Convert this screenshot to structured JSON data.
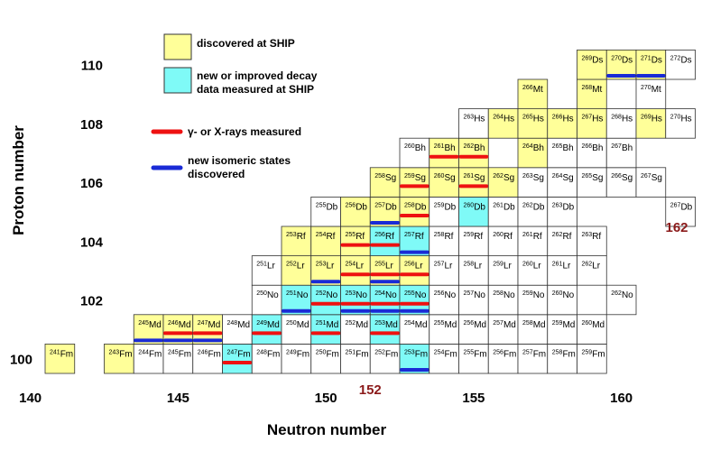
{
  "axes": {
    "x_label": "Neutron number",
    "y_label": "Proton number",
    "x_ticks": [
      {
        "n": 140,
        "label": "140"
      },
      {
        "n": 145,
        "label": "145"
      },
      {
        "n": 150,
        "label": "150"
      },
      {
        "n": 155,
        "label": "155"
      },
      {
        "n": 160,
        "label": "160"
      }
    ],
    "y_ticks": [
      {
        "z": 100,
        "label": "100"
      },
      {
        "z": 102,
        "label": "102"
      },
      {
        "z": 104,
        "label": "104"
      },
      {
        "z": 106,
        "label": "106"
      },
      {
        "z": 108,
        "label": "108"
      },
      {
        "z": 110,
        "label": "110"
      }
    ],
    "magic": [
      {
        "axis": "x",
        "n": 152,
        "label": "152"
      },
      {
        "axis": "y",
        "n": 162,
        "label": "162"
      }
    ]
  },
  "legend": [
    {
      "kind": "box",
      "color": "#ffff99",
      "label": "discovered at SHIP"
    },
    {
      "kind": "box",
      "color": "#7ffaf7",
      "label": "new or improved decay\ndata measured at SHIP"
    },
    {
      "kind": "line",
      "color": "#ee1111",
      "label": "γ- or X-rays measured"
    },
    {
      "kind": "line",
      "color": "#1a2bd6",
      "label": "new isomeric states\ndiscovered"
    }
  ],
  "colors": {
    "discovered": "#ffff99",
    "decay": "#7ffaf7",
    "gamma": "#ee1111",
    "isomer": "#1a2bd6",
    "magic": "#8b1a1a"
  },
  "elements": {
    "100": "Fm",
    "101": "Md",
    "102": "No",
    "103": "Lr",
    "104": "Rf",
    "105": "Db",
    "106": "Sg",
    "107": "Bh",
    "108": "Hs",
    "109": "Mt",
    "110": "Ds"
  },
  "nuclides": [
    {
      "z": 100,
      "n": 141,
      "status": "yellow"
    },
    {
      "z": 100,
      "n": 143,
      "status": "yellow"
    },
    {
      "z": 100,
      "n": 144
    },
    {
      "z": 100,
      "n": 145
    },
    {
      "z": 100,
      "n": 146
    },
    {
      "z": 100,
      "n": 147,
      "status": "cyan",
      "marks": [
        "red"
      ]
    },
    {
      "z": 100,
      "n": 148
    },
    {
      "z": 100,
      "n": 149
    },
    {
      "z": 100,
      "n": 150
    },
    {
      "z": 100,
      "n": 151
    },
    {
      "z": 100,
      "n": 152
    },
    {
      "z": 100,
      "n": 153,
      "status": "cyan",
      "marks": [
        "blue"
      ]
    },
    {
      "z": 100,
      "n": 154
    },
    {
      "z": 100,
      "n": 155
    },
    {
      "z": 100,
      "n": 156
    },
    {
      "z": 100,
      "n": 157
    },
    {
      "z": 100,
      "n": 158
    },
    {
      "z": 100,
      "n": 159
    },
    {
      "z": 101,
      "n": 144,
      "status": "yellow",
      "marks": [
        "blue"
      ]
    },
    {
      "z": 101,
      "n": 145,
      "status": "yellow",
      "marks": [
        "red",
        "blue"
      ]
    },
    {
      "z": 101,
      "n": 146,
      "status": "yellow",
      "marks": [
        "red",
        "blue"
      ]
    },
    {
      "z": 101,
      "n": 147
    },
    {
      "z": 101,
      "n": 148,
      "status": "cyan",
      "marks": [
        "red"
      ]
    },
    {
      "z": 101,
      "n": 149
    },
    {
      "z": 101,
      "n": 150,
      "status": "cyan",
      "marks": [
        "red"
      ]
    },
    {
      "z": 101,
      "n": 151
    },
    {
      "z": 101,
      "n": 152,
      "status": "cyan",
      "marks": [
        "red"
      ]
    },
    {
      "z": 101,
      "n": 153
    },
    {
      "z": 101,
      "n": 154
    },
    {
      "z": 101,
      "n": 155
    },
    {
      "z": 101,
      "n": 156
    },
    {
      "z": 101,
      "n": 157
    },
    {
      "z": 101,
      "n": 158
    },
    {
      "z": 101,
      "n": 159
    },
    {
      "z": 102,
      "n": 148
    },
    {
      "z": 102,
      "n": 149,
      "status": "cyan",
      "marks": [
        "blue"
      ]
    },
    {
      "z": 102,
      "n": 150,
      "status": "cyan",
      "marks": [
        "red"
      ]
    },
    {
      "z": 102,
      "n": 151,
      "status": "cyan",
      "marks": [
        "red",
        "blue"
      ]
    },
    {
      "z": 102,
      "n": 152,
      "status": "cyan",
      "marks": [
        "red",
        "blue"
      ]
    },
    {
      "z": 102,
      "n": 153,
      "status": "cyan",
      "marks": [
        "red",
        "blue"
      ]
    },
    {
      "z": 102,
      "n": 154
    },
    {
      "z": 102,
      "n": 155
    },
    {
      "z": 102,
      "n": 156
    },
    {
      "z": 102,
      "n": 157
    },
    {
      "z": 102,
      "n": 158
    },
    {
      "z": 102,
      "n": 160
    },
    {
      "z": 103,
      "n": 148
    },
    {
      "z": 103,
      "n": 149,
      "status": "yellow"
    },
    {
      "z": 103,
      "n": 150,
      "status": "yellow",
      "marks": [
        "blue"
      ]
    },
    {
      "z": 103,
      "n": 151,
      "status": "yellow",
      "marks": [
        "red"
      ]
    },
    {
      "z": 103,
      "n": 152,
      "status": "yellow",
      "marks": [
        "red",
        "blue"
      ]
    },
    {
      "z": 103,
      "n": 153,
      "status": "yellow",
      "marks": [
        "red"
      ]
    },
    {
      "z": 103,
      "n": 154
    },
    {
      "z": 103,
      "n": 155
    },
    {
      "z": 103,
      "n": 156
    },
    {
      "z": 103,
      "n": 157
    },
    {
      "z": 103,
      "n": 158
    },
    {
      "z": 103,
      "n": 159
    },
    {
      "z": 104,
      "n": 149,
      "status": "yellow"
    },
    {
      "z": 104,
      "n": 150,
      "status": "yellow"
    },
    {
      "z": 104,
      "n": 151,
      "status": "yellow",
      "marks": [
        "red"
      ]
    },
    {
      "z": 104,
      "n": 152,
      "status": "cyan",
      "marks": [
        "red"
      ]
    },
    {
      "z": 104,
      "n": 153,
      "status": "cyan",
      "marks": [
        "blue"
      ]
    },
    {
      "z": 104,
      "n": 154
    },
    {
      "z": 104,
      "n": 155
    },
    {
      "z": 104,
      "n": 156
    },
    {
      "z": 104,
      "n": 157
    },
    {
      "z": 104,
      "n": 158
    },
    {
      "z": 104,
      "n": 159
    },
    {
      "z": 105,
      "n": 150
    },
    {
      "z": 105,
      "n": 151,
      "status": "yellow"
    },
    {
      "z": 105,
      "n": 152,
      "status": "yellow",
      "marks": [
        "blue"
      ]
    },
    {
      "z": 105,
      "n": 153,
      "status": "yellow",
      "marks": [
        "red"
      ]
    },
    {
      "z": 105,
      "n": 154
    },
    {
      "z": 105,
      "n": 155,
      "status": "cyan"
    },
    {
      "z": 105,
      "n": 156
    },
    {
      "z": 105,
      "n": 157
    },
    {
      "z": 105,
      "n": 158
    },
    {
      "z": 105,
      "n": 162
    },
    {
      "z": 106,
      "n": 152,
      "status": "yellow"
    },
    {
      "z": 106,
      "n": 153,
      "status": "yellow",
      "marks": [
        "red"
      ]
    },
    {
      "z": 106,
      "n": 154,
      "status": "yellow"
    },
    {
      "z": 106,
      "n": 155,
      "status": "yellow",
      "marks": [
        "red"
      ]
    },
    {
      "z": 106,
      "n": 156,
      "status": "yellow"
    },
    {
      "z": 106,
      "n": 157
    },
    {
      "z": 106,
      "n": 158
    },
    {
      "z": 106,
      "n": 159
    },
    {
      "z": 106,
      "n": 160
    },
    {
      "z": 106,
      "n": 161
    },
    {
      "z": 107,
      "n": 153
    },
    {
      "z": 107,
      "n": 154,
      "status": "yellow",
      "marks": [
        "red"
      ]
    },
    {
      "z": 107,
      "n": 155,
      "status": "yellow",
      "marks": [
        "red"
      ]
    },
    {
      "z": 107,
      "n": 157,
      "status": "yellow"
    },
    {
      "z": 107,
      "n": 158
    },
    {
      "z": 107,
      "n": 159
    },
    {
      "z": 107,
      "n": 160
    },
    {
      "z": 108,
      "n": 155
    },
    {
      "z": 108,
      "n": 156,
      "status": "yellow"
    },
    {
      "z": 108,
      "n": 157,
      "status": "yellow"
    },
    {
      "z": 108,
      "n": 158,
      "status": "yellow"
    },
    {
      "z": 108,
      "n": 159,
      "status": "yellow"
    },
    {
      "z": 108,
      "n": 160
    },
    {
      "z": 108,
      "n": 161,
      "status": "yellow"
    },
    {
      "z": 108,
      "n": 162
    },
    {
      "z": 109,
      "n": 157,
      "status": "yellow"
    },
    {
      "z": 109,
      "n": 159,
      "status": "yellow"
    },
    {
      "z": 109,
      "n": 161
    },
    {
      "z": 110,
      "n": 159,
      "status": "yellow"
    },
    {
      "z": 110,
      "n": 160,
      "status": "yellow",
      "marks": [
        "blue"
      ]
    },
    {
      "z": 110,
      "n": 161,
      "status": "yellow",
      "marks": [
        "blue"
      ]
    },
    {
      "z": 110,
      "n": 162
    }
  ]
}
